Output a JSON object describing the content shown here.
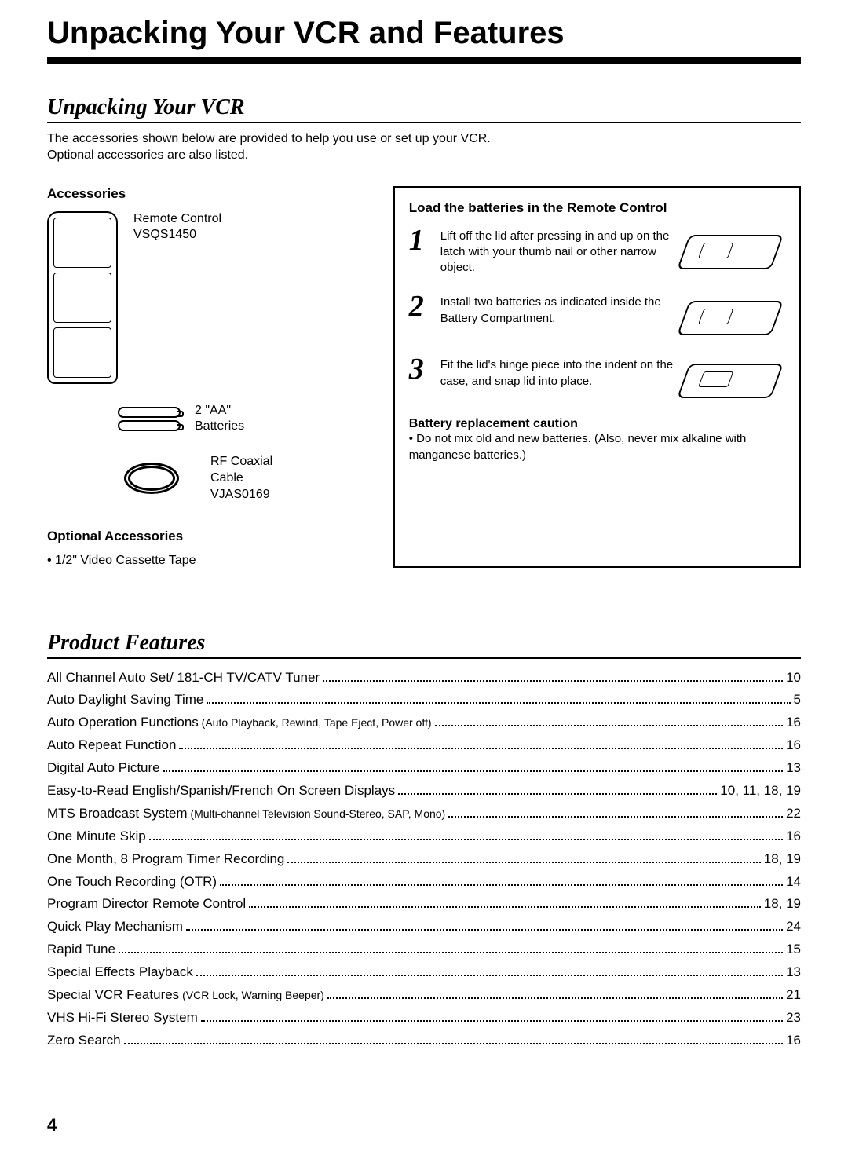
{
  "pageTitle": "Unpacking Your VCR and Features",
  "section1": {
    "title": "Unpacking Your VCR",
    "intro": "The accessories shown below are provided to help you use or set up your VCR.\nOptional accessories are also listed."
  },
  "accessories": {
    "heading": "Accessories",
    "remote": "Remote Control\nVSQS1450",
    "batteries": "2 \"AA\"\nBatteries",
    "cable": "RF Coaxial\nCable\nVJAS0169"
  },
  "optional": {
    "heading": "Optional Accessories",
    "items": [
      "1/2\" Video Cassette Tape"
    ]
  },
  "batteryBox": {
    "heading": "Load the batteries in the Remote Control",
    "steps": [
      "Lift off the lid after pressing in and up on the latch with your thumb nail or other narrow object.",
      "Install two batteries as indicated inside the Battery Compartment.",
      "Fit the lid's hinge piece into the indent on the case, and snap lid into place."
    ],
    "cautionHead": "Battery replacement caution",
    "cautionText": "Do not mix old and new batteries.  (Also, never mix alkaline with manganese batteries.)"
  },
  "features": {
    "title": "Product Features",
    "items": [
      {
        "label": "All Channel Auto Set/ 181-CH TV/CATV Tuner",
        "sub": "",
        "page": "10"
      },
      {
        "label": "Auto Daylight Saving Time",
        "sub": "",
        "page": "5"
      },
      {
        "label": "Auto Operation Functions",
        "sub": " (Auto Playback, Rewind, Tape Eject, Power off)",
        "page": "16"
      },
      {
        "label": "Auto Repeat Function",
        "sub": "",
        "page": "16"
      },
      {
        "label": "Digital Auto Picture",
        "sub": "",
        "page": "13"
      },
      {
        "label": "Easy-to-Read English/Spanish/French On Screen Displays",
        "sub": "",
        "page": "10, 11, 18, 19"
      },
      {
        "label": "MTS Broadcast System",
        "sub": " (Multi-channel Television Sound-Stereo, SAP, Mono)",
        "page": "22"
      },
      {
        "label": "One Minute Skip",
        "sub": "",
        "page": "16"
      },
      {
        "label": "One Month, 8 Program Timer Recording",
        "sub": "",
        "page": "18, 19"
      },
      {
        "label": "One Touch Recording (OTR)",
        "sub": "",
        "page": "14"
      },
      {
        "label": "Program Director Remote Control",
        "sub": "",
        "page": "18, 19"
      },
      {
        "label": "Quick Play Mechanism",
        "sub": "",
        "page": "24"
      },
      {
        "label": "Rapid Tune",
        "sub": "",
        "page": "15"
      },
      {
        "label": "Special Effects Playback",
        "sub": "",
        "page": "13"
      },
      {
        "label": "Special VCR Features",
        "sub": " (VCR Lock, Warning Beeper)",
        "page": "21"
      },
      {
        "label": "VHS Hi-Fi Stereo System",
        "sub": "",
        "page": "23"
      },
      {
        "label": "Zero Search",
        "sub": "",
        "page": "16"
      }
    ]
  },
  "pageNumber": "4"
}
